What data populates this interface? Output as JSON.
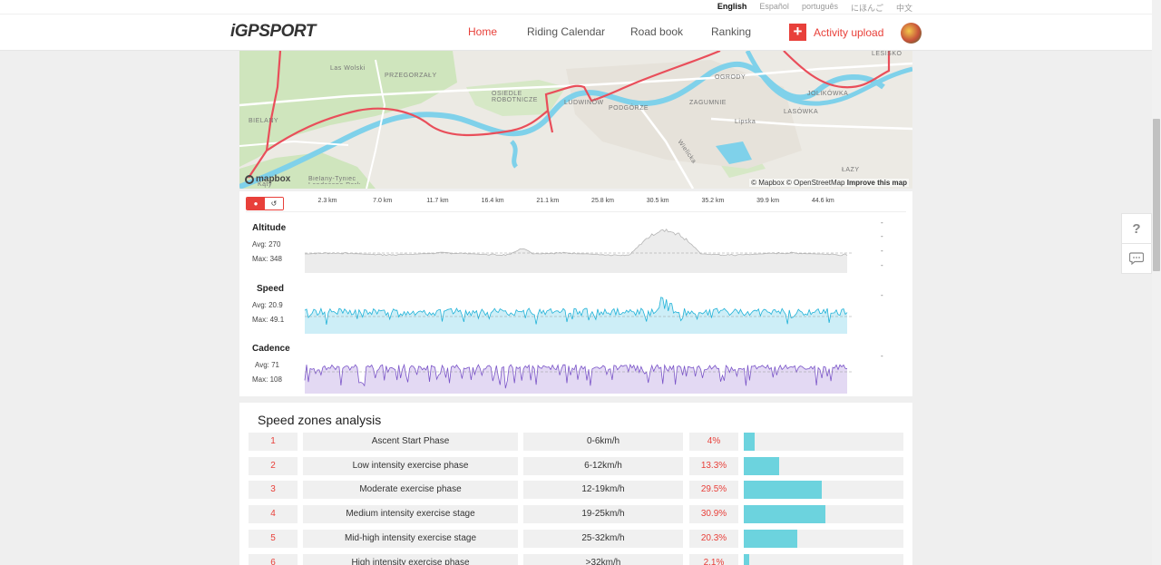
{
  "languages": [
    {
      "label": "English",
      "active": true
    },
    {
      "label": "Español",
      "active": false
    },
    {
      "label": "português",
      "active": false
    },
    {
      "label": "にほんご",
      "active": false
    },
    {
      "label": "中文",
      "active": false
    }
  ],
  "header": {
    "logo": "iGPSPORT",
    "nav": [
      "Home",
      "Riding Calendar",
      "Road book",
      "Ranking"
    ],
    "active_nav": "Home",
    "upload_label": "Activity upload"
  },
  "map": {
    "places": [
      "Las Wolski",
      "PRZEGORZAŁY",
      "OSIEDLE ROBOTNICZE",
      "LUDWINÓW",
      "PODGÓRZE",
      "ZAGUMNIE",
      "OGRODY",
      "Lipska",
      "LASÓWKA",
      "JOLIKÓWKA",
      "LESISKO",
      "BIELANY",
      "Bielany-Tyniec Landscape Park",
      "Wielicka",
      "ŁAZY",
      "Kąty"
    ],
    "attribution": "© Mapbox © OpenStreetMap",
    "improve": "Improve this map",
    "logo": "mapbox"
  },
  "chart_data": {
    "type": "line",
    "x_ticks": [
      "2.3 km",
      "7.0 km",
      "11.7 km",
      "16.4 km",
      "21.1 km",
      "25.8 km",
      "30.5 km",
      "35.2 km",
      "39.9 km",
      "44.6 km"
    ],
    "series": [
      {
        "name": "Altitude",
        "avg_label": "Avg:",
        "avg": "270",
        "max_label": "Max:",
        "max": "348",
        "color": "#aaaaaa"
      },
      {
        "name": "Speed",
        "avg_label": "Avg:",
        "avg": "20.9",
        "max_label": "Max:",
        "max": "49.1",
        "color": "#1fb2d8"
      },
      {
        "name": "Cadence",
        "avg_label": "Avg:",
        "avg": "71",
        "max_label": "Max:",
        "max": "108",
        "color": "#7a54c8"
      }
    ]
  },
  "zones": {
    "title": "Speed zones analysis",
    "rows": [
      {
        "num": "1",
        "name": "Ascent Start Phase",
        "range": "0-6km/h",
        "pct": "4%",
        "value": 4
      },
      {
        "num": "2",
        "name": "Low intensity exercise phase",
        "range": "6-12km/h",
        "pct": "13.3%",
        "value": 13.3
      },
      {
        "num": "3",
        "name": "Moderate exercise phase",
        "range": "12-19km/h",
        "pct": "29.5%",
        "value": 29.5
      },
      {
        "num": "4",
        "name": "Medium intensity exercise stage",
        "range": "19-25km/h",
        "pct": "30.9%",
        "value": 30.9
      },
      {
        "num": "5",
        "name": "Mid-high intensity exercise stage",
        "range": "25-32km/h",
        "pct": "20.3%",
        "value": 20.3
      },
      {
        "num": "6",
        "name": "High intensity exercise phase",
        "range": ">32km/h",
        "pct": "2.1%",
        "value": 2.1
      }
    ]
  },
  "colors": {
    "accent": "#e8403a",
    "zone_bar": "#6cd3de"
  }
}
